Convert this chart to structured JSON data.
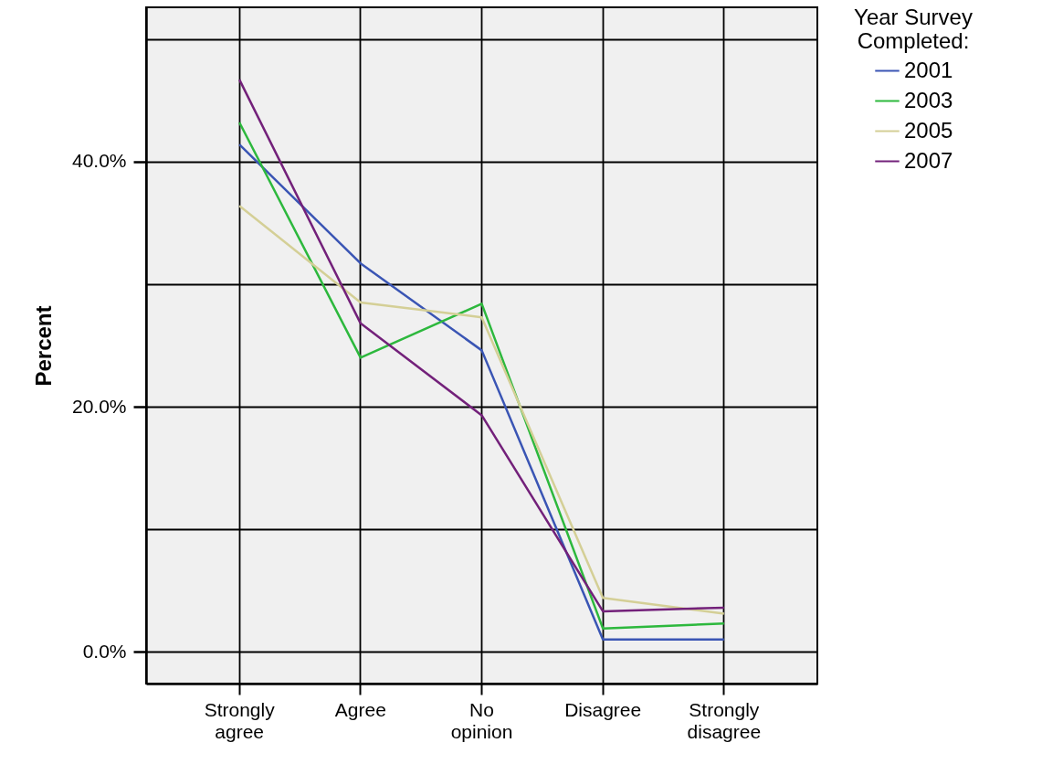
{
  "chart_data": {
    "type": "line",
    "ylabel": "Percent",
    "legend_title": "Year Survey Completed:",
    "categories": [
      "Strongly agree",
      "Agree",
      "No opinion",
      "Disagree",
      "Strongly disagree"
    ],
    "ylim": [
      -2.6,
      52.6
    ],
    "yticks": [
      {
        "value": 0,
        "label": "0.0%"
      },
      {
        "value": 10,
        "label": null
      },
      {
        "value": 20,
        "label": "20.0%"
      },
      {
        "value": 30,
        "label": null
      },
      {
        "value": 40,
        "label": "40.0%"
      },
      {
        "value": 50,
        "label": null
      }
    ],
    "grid": true,
    "legend": "top right",
    "line_style": "solid",
    "series": [
      {
        "name": "2001",
        "color": "#3a55b4",
        "values": [
          41.4,
          31.7,
          24.6,
          1.0,
          1.0
        ]
      },
      {
        "name": "2003",
        "color": "#2db83d",
        "values": [
          43.2,
          24.0,
          28.4,
          1.9,
          2.3
        ]
      },
      {
        "name": "2005",
        "color": "#d4cf96",
        "values": [
          36.4,
          28.5,
          27.3,
          4.4,
          3.1
        ]
      },
      {
        "name": "2007",
        "color": "#73217a",
        "values": [
          46.7,
          26.8,
          19.3,
          3.3,
          3.6
        ]
      }
    ]
  }
}
